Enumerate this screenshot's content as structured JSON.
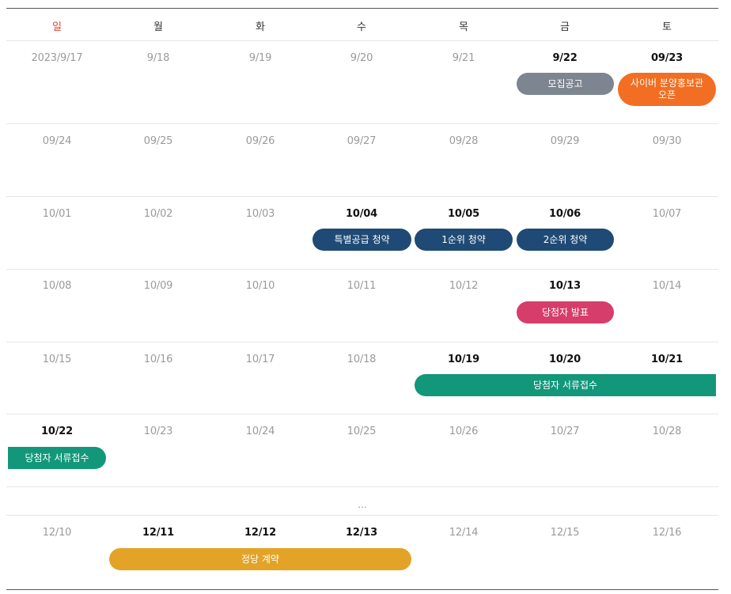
{
  "weekdays": [
    "일",
    "월",
    "화",
    "수",
    "목",
    "금",
    "토"
  ],
  "rows": [
    [
      "2023/9/17",
      "9/18",
      "9/19",
      "9/20",
      "9/21",
      "9/22",
      "09/23"
    ],
    [
      "09/24",
      "09/25",
      "09/26",
      "09/27",
      "09/28",
      "09/29",
      "09/30"
    ],
    [
      "10/01",
      "10/02",
      "10/03",
      "10/04",
      "10/05",
      "10/06",
      "10/07"
    ],
    [
      "10/08",
      "10/09",
      "10/10",
      "10/11",
      "10/12",
      "10/13",
      "10/14"
    ],
    [
      "10/15",
      "10/16",
      "10/17",
      "10/18",
      "10/19",
      "10/20",
      "10/21"
    ],
    [
      "10/22",
      "10/23",
      "10/24",
      "10/25",
      "10/26",
      "10/27",
      "10/28"
    ],
    [
      "12/10",
      "12/11",
      "12/12",
      "12/13",
      "12/14",
      "12/15",
      "12/16"
    ]
  ],
  "ellipsis": "...",
  "events": {
    "recruit_notice": "모집공고",
    "cyber_gallery": "사이버 분양홍보관 오픈",
    "special_supply": "특별공급 청약",
    "first_priority": "1순위 청약",
    "second_priority": "2순위 청약",
    "winner_announce": "당첨자 발표",
    "winner_docs": "당첨자 서류접수",
    "winner_docs_2": "당첨자 서류접수",
    "contract": "정당 계약"
  },
  "colors": {
    "sunday": "#e0452b",
    "gray": "#7d8590",
    "orange": "#f26e22",
    "navy": "#1f4a75",
    "pink": "#d63d6a",
    "green": "#12977a",
    "gold": "#e3a327"
  }
}
